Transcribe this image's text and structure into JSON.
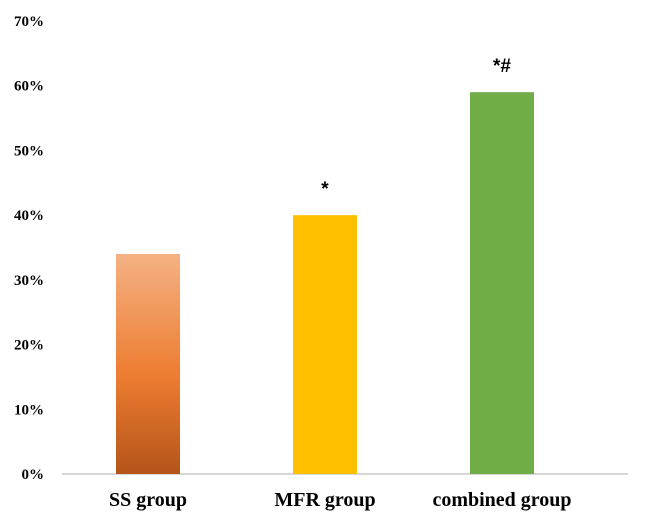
{
  "chart_data": {
    "type": "bar",
    "title": "",
    "xlabel": "",
    "ylabel": "",
    "ylim": [
      0,
      70
    ],
    "y_ticks": [
      "0%",
      "10%",
      "20%",
      "30%",
      "40%",
      "50%",
      "60%",
      "70%"
    ],
    "categories": [
      "SS group",
      "MFR group",
      "combined group"
    ],
    "values": [
      34,
      40,
      59
    ],
    "annotations": [
      "",
      "*",
      "*#"
    ],
    "colors": [
      "#d9742d",
      "#ffc000",
      "#70ad47"
    ],
    "gradient_first_bar": [
      "#f4b183",
      "#ed7d31",
      "#b5541a"
    ],
    "grid": false,
    "legend": "none"
  }
}
